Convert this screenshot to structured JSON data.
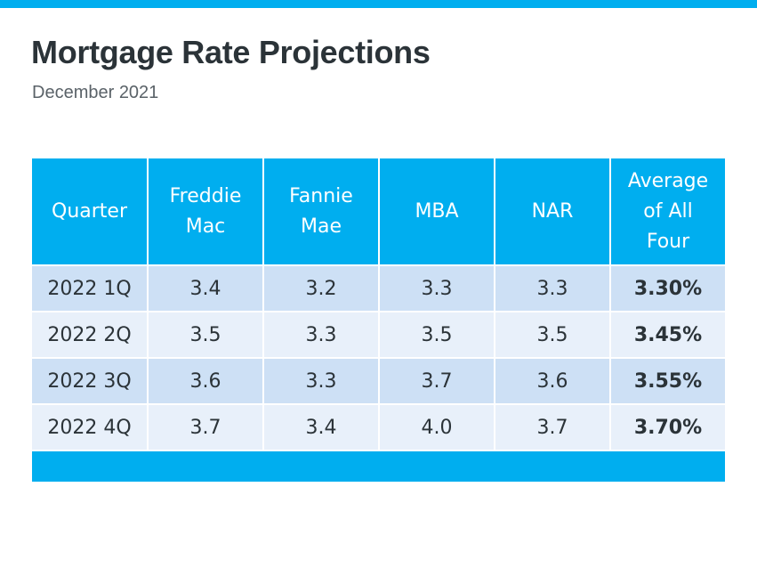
{
  "title": "Mortgage Rate Projections",
  "subtitle": "December 2021",
  "colors": {
    "accent": "#00aeef",
    "row_odd": "#cde0f5",
    "row_even": "#e8f0fa",
    "text": "#2b3338"
  },
  "chart_data": {
    "type": "table",
    "columns": [
      [
        "Quarter"
      ],
      [
        "Freddie",
        "Mac"
      ],
      [
        "Fannie",
        "Mae"
      ],
      [
        "MBA"
      ],
      [
        "NAR"
      ],
      [
        "Average",
        "of All",
        "Four"
      ]
    ],
    "rows": [
      [
        "2022 1Q",
        "3.4",
        "3.2",
        "3.3",
        "3.3",
        "3.30%"
      ],
      [
        "2022 2Q",
        "3.5",
        "3.3",
        "3.5",
        "3.5",
        "3.45%"
      ],
      [
        "2022 3Q",
        "3.6",
        "3.3",
        "3.7",
        "3.6",
        "3.55%"
      ],
      [
        "2022 4Q",
        "3.7",
        "3.4",
        "4.0",
        "3.7",
        "3.70%"
      ]
    ]
  }
}
